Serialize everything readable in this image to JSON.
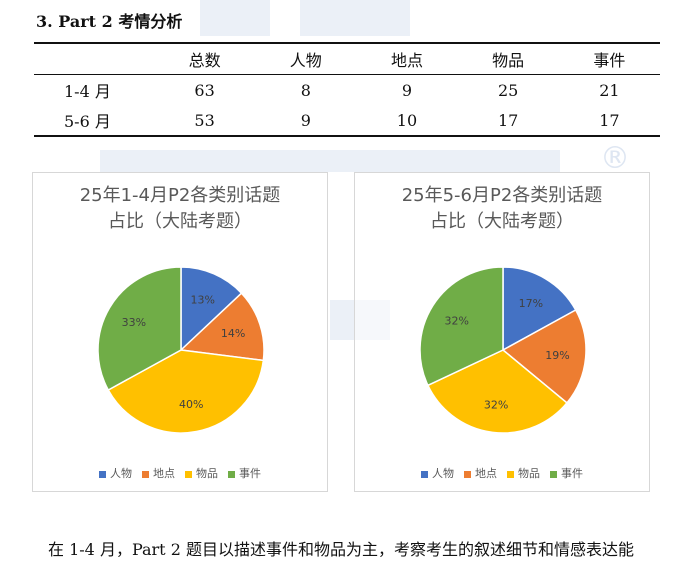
{
  "section_title": "3.  Part 2 考情分析",
  "table": {
    "headers": [
      "",
      "总数",
      "人物",
      "地点",
      "物品",
      "事件"
    ],
    "rows": [
      [
        "1-4 月",
        "63",
        "8",
        "9",
        "25",
        "21"
      ],
      [
        "5-6 月",
        "53",
        "9",
        "10",
        "17",
        "17"
      ]
    ]
  },
  "chart_data": [
    {
      "type": "pie",
      "title_lines": [
        "25年1-4月P2各类别话题",
        "占比（大陆考题）"
      ],
      "categories": [
        "人物",
        "地点",
        "物品",
        "事件"
      ],
      "values": [
        13,
        14,
        40,
        33
      ],
      "labels": [
        "13%",
        "14%",
        "40%",
        "33%"
      ],
      "colors": [
        "#4472C4",
        "#ED7D31",
        "#FFC000",
        "#70AD47"
      ],
      "legend_position": "bottom"
    },
    {
      "type": "pie",
      "title_lines": [
        "25年5-6月P2各类别话题",
        "占比（大陆考题）"
      ],
      "categories": [
        "人物",
        "地点",
        "物品",
        "事件"
      ],
      "values": [
        17,
        19,
        32,
        32
      ],
      "labels": [
        "17%",
        "19%",
        "32%",
        "32%"
      ],
      "colors": [
        "#4472C4",
        "#ED7D31",
        "#FFC000",
        "#70AD47"
      ],
      "legend_position": "bottom"
    }
  ],
  "paragraph": "在 1-4 月，Part 2 题目以描述事件和物品为主，考察考生的叙述细节和情感表达能",
  "watermark_color": "#c9d6ea"
}
